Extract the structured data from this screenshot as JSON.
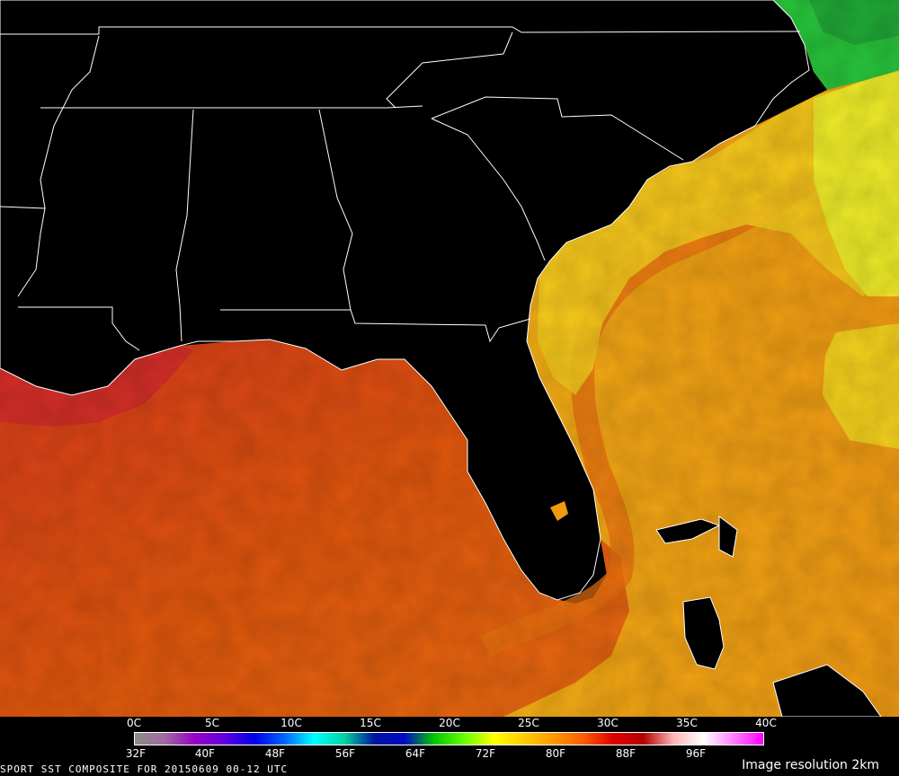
{
  "map": {
    "region": "Southeastern United States, Gulf of Mexico and western Atlantic",
    "colors": {
      "land": "#000000",
      "borders": "#ffffff",
      "gulf_warm": "#e0560c",
      "gulf_hot": "#d0202a",
      "atlantic_shelf": "#f5c21a",
      "atlantic_open": "#f09a12",
      "gulf_stream_core": "#e66a0e",
      "northern_cool": "#eef52a",
      "chesapeake_cold": "#25c83a"
    }
  },
  "colorbar": {
    "celsius_ticks": [
      "0C",
      "5C",
      "10C",
      "15C",
      "20C",
      "25C",
      "30C",
      "35C",
      "40C"
    ],
    "fahrenheit_ticks": [
      "32F",
      "40F",
      "48F",
      "56F",
      "64F",
      "72F",
      "80F",
      "88F",
      "96F"
    ],
    "gradient_stops": [
      "#8c8c8c",
      "#a06aa0",
      "#9a00c8",
      "#6000e0",
      "#0000e6",
      "#0066ff",
      "#00ffff",
      "#00d2a0",
      "#0014a0",
      "#0008c8",
      "#00c800",
      "#66ff00",
      "#ffff00",
      "#ffcc00",
      "#ff9900",
      "#ff5a00",
      "#dc0000",
      "#b40000",
      "#ffb4b4",
      "#ffffff",
      "#ff80ff",
      "#ff00ff"
    ]
  },
  "footer": {
    "title": "SPORT SST COMPOSITE FOR 20150609 00-12 UTC",
    "resolution": "Image resolution 2km"
  }
}
